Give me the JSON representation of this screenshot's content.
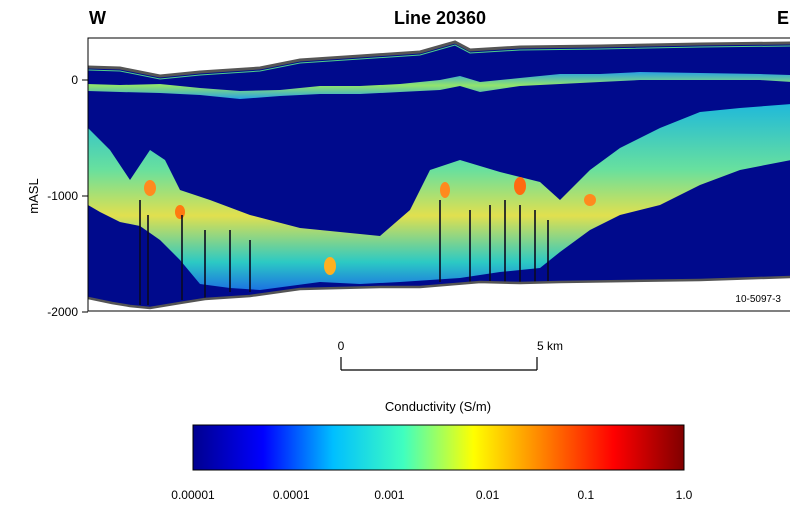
{
  "chart_data": {
    "type": "heatmap",
    "title": "Line 20360",
    "left_direction": "W",
    "right_direction": "E",
    "ylabel": "mASL",
    "ylim": [
      -2000,
      350
    ],
    "y_ticks": [
      {
        "value": 0,
        "label": "0"
      },
      {
        "value": -1000,
        "label": "-1000"
      },
      {
        "value": -2000,
        "label": "-2000"
      }
    ],
    "figure_code": "10-5097-3",
    "scale_bar": {
      "start_label": "0",
      "end_label": "5 km",
      "length_km": 5
    },
    "colorbar": {
      "label": "Conductivity (S/m)",
      "scale": "log",
      "range": [
        1e-05,
        1.0
      ],
      "tick_values": [
        1e-05,
        0.0001,
        0.001,
        0.01,
        0.1,
        1.0
      ],
      "tick_labels": [
        "0.00001",
        "0.0001",
        "0.001",
        "0.01",
        "0.1",
        "1.0"
      ],
      "colormap": [
        "#00008f",
        "#0000ff",
        "#00bfff",
        "#40ffbf",
        "#ffff00",
        "#ff8000",
        "#ff0000",
        "#800000"
      ]
    },
    "colors": {
      "background": "#000a8c",
      "shallow_band": "#66e09a",
      "surface_line": "#555555"
    }
  }
}
